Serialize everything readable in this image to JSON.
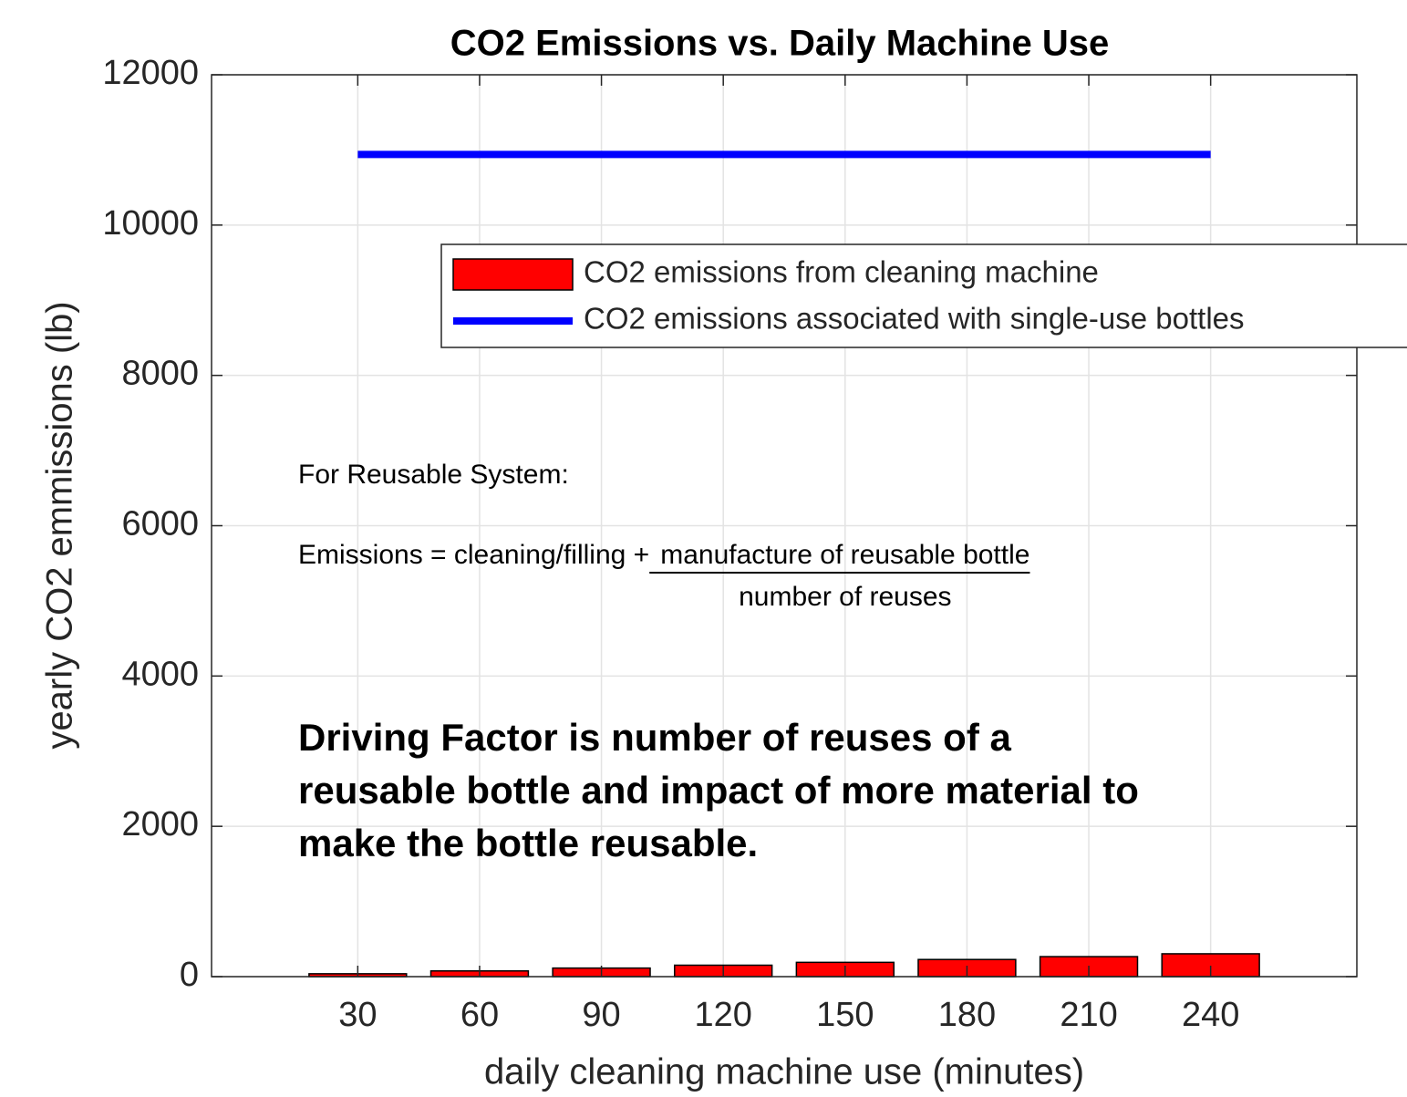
{
  "chart_data": {
    "type": "bar",
    "title": "CO2 Emissions vs. Daily Machine Use",
    "xlabel": "daily cleaning machine use (minutes)",
    "ylabel": "yearly CO2 emmissions (lb)",
    "x": [
      30,
      60,
      90,
      120,
      150,
      180,
      210,
      240
    ],
    "series": [
      {
        "name": "CO2 emissions from cleaning machine",
        "type": "bar",
        "color": "#ff0000",
        "values": [
          38,
          76,
          114,
          152,
          190,
          228,
          266,
          304
        ]
      },
      {
        "name": "CO2 emissions associated with single-use bottles",
        "type": "line",
        "color": "#0000ff",
        "values": [
          10940,
          10940,
          10940,
          10940,
          10940,
          10940,
          10940,
          10940
        ]
      }
    ],
    "xlim": [
      -6,
      276
    ],
    "xticks": [
      30,
      60,
      90,
      120,
      150,
      180,
      210,
      240
    ],
    "ylim": [
      0,
      12000
    ],
    "yticks": [
      0,
      2000,
      4000,
      6000,
      8000,
      10000,
      12000
    ],
    "grid": true,
    "legend": "northeast",
    "annotations": {
      "heading": "For Reusable System:",
      "formula_left": "Emissions = cleaning/filling + ",
      "numerator": "manufacture of reusable bottle",
      "denominator": "number of reuses",
      "conclusion": [
        "Driving Factor is number of reuses of a",
        "reusable bottle and impact of more material to",
        "make the bottle reusable."
      ]
    }
  }
}
